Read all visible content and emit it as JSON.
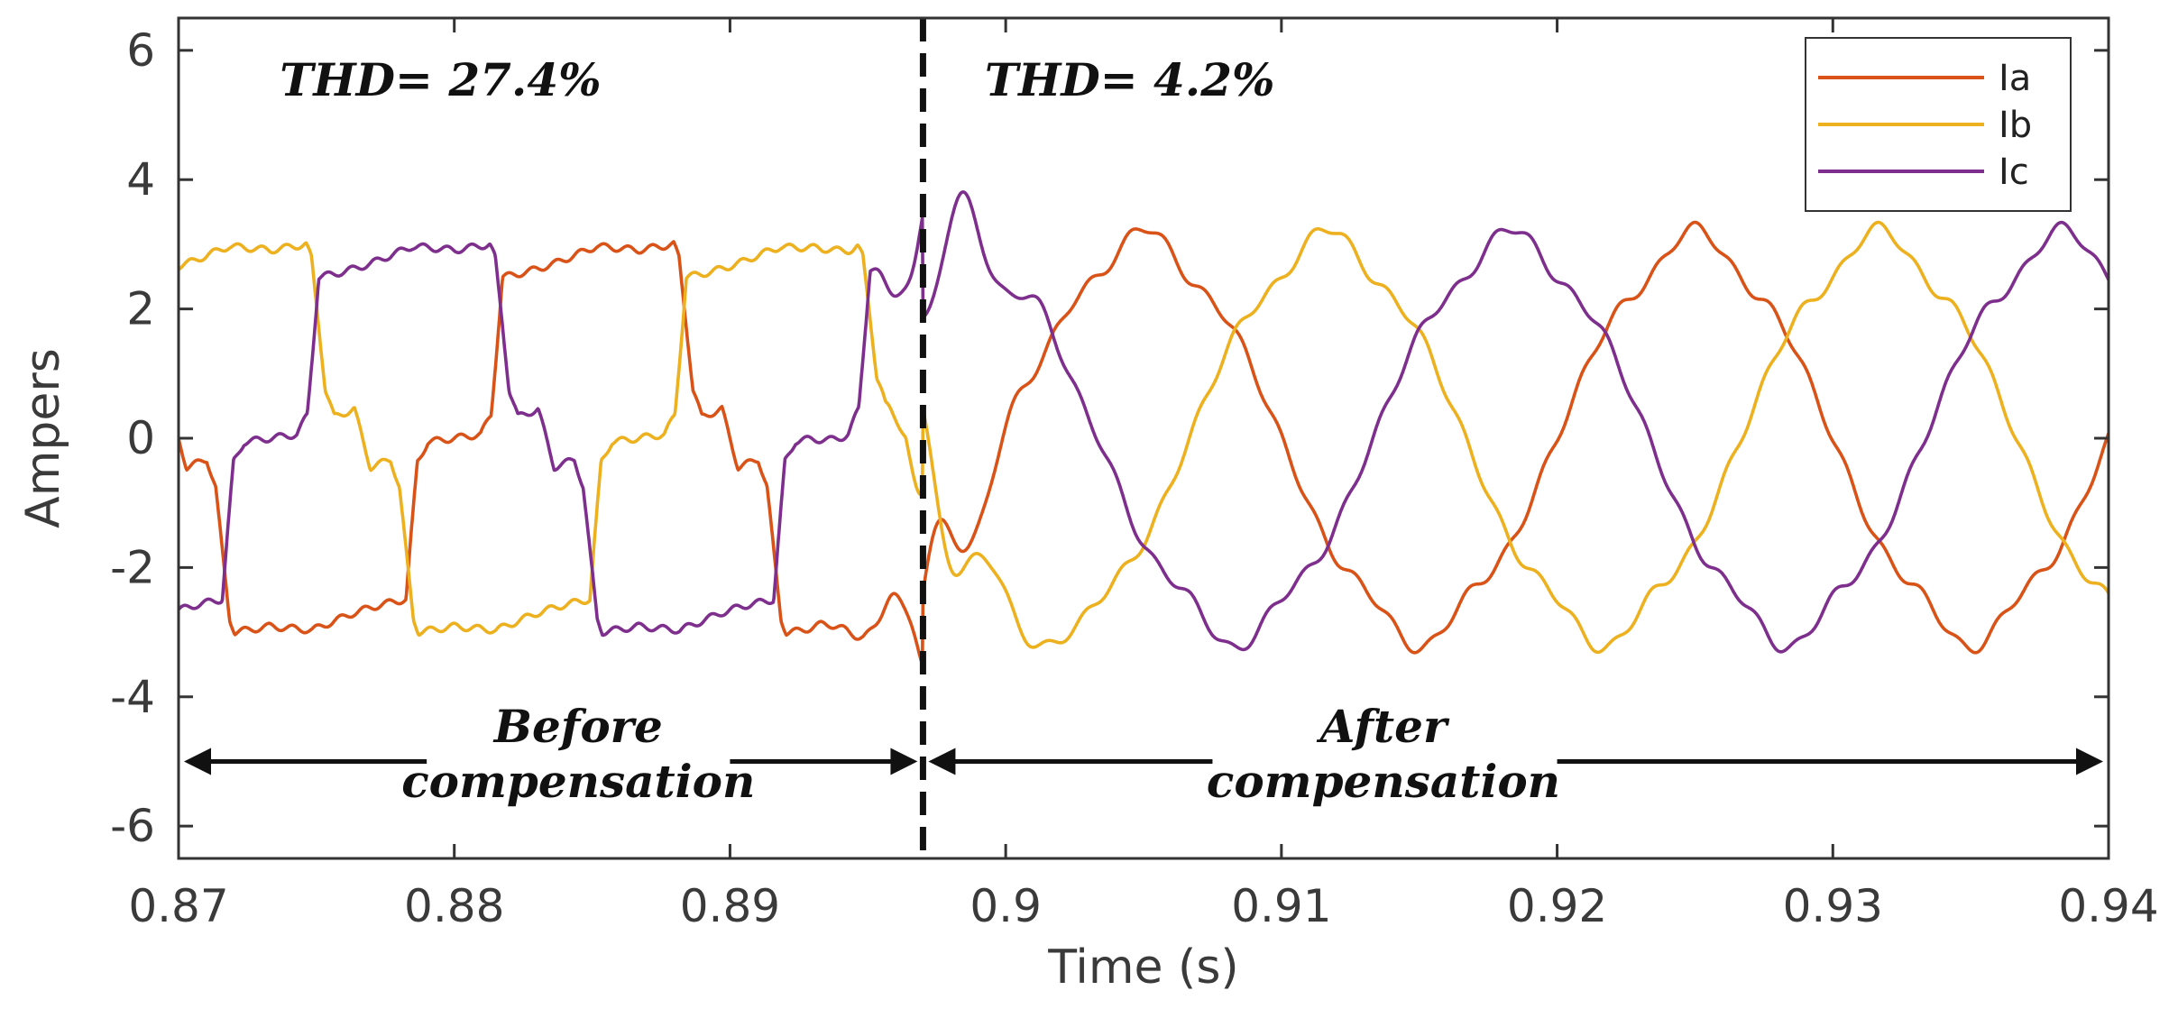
{
  "chart_data": {
    "type": "line",
    "title": "",
    "xlabel": "Time (s)",
    "ylabel": "Ampers",
    "xlim": [
      0.87,
      0.94
    ],
    "ylim": [
      -6.5,
      6.5
    ],
    "xticks": [
      0.87,
      0.88,
      0.89,
      0.9,
      0.91,
      0.92,
      0.93,
      0.94
    ],
    "xtick_labels": [
      "0.87",
      "0.88",
      "0.89",
      "0.9",
      "0.91",
      "0.92",
      "0.93",
      "0.94"
    ],
    "yticks": [
      6,
      4,
      2,
      0,
      -2,
      -4,
      -6
    ],
    "ytick_labels": [
      "6",
      "4",
      "2",
      "0",
      "-2",
      "-4",
      "-6"
    ],
    "grid": false,
    "legend_position": "top-right",
    "compensation_time": 0.897,
    "fundamental_hz": 50,
    "before": {
      "amplitude": 3.0,
      "thd_percent": 27.4
    },
    "after": {
      "amplitude": 3.05,
      "thd_percent": 4.2
    },
    "series": [
      {
        "name": "Ia",
        "color": "#D95319",
        "phase_deg": 0
      },
      {
        "name": "Ib",
        "color": "#EDB120",
        "phase_deg": -120
      },
      {
        "name": "Ic",
        "color": "#7E2F8E",
        "phase_deg": 120
      }
    ],
    "annotations": [
      {
        "id": "thd-before",
        "text": "THD= 27.4%",
        "x": 0.8795,
        "y": 5.3
      },
      {
        "id": "thd-after",
        "text": "THD= 4.2%",
        "x": 0.9045,
        "y": 5.3
      },
      {
        "id": "before-line1",
        "text": "Before",
        "x": 0.8845,
        "y": -4.7
      },
      {
        "id": "before-line2",
        "text": "compensation",
        "x": 0.8845,
        "y": -5.55
      },
      {
        "id": "after-line1",
        "text": "After",
        "x": 0.9137,
        "y": -4.7
      },
      {
        "id": "after-line2",
        "text": "compensation",
        "x": 0.9137,
        "y": -5.55
      }
    ],
    "arrows": [
      {
        "id": "arrow-before",
        "x_start": 0.87,
        "x_end": 0.897,
        "y": -5,
        "gap_start": 0.879,
        "gap_end": 0.89
      },
      {
        "id": "arrow-after",
        "x_start": 0.897,
        "x_end": 0.94,
        "y": -5,
        "gap_start": 0.9075,
        "gap_end": 0.92
      }
    ]
  }
}
